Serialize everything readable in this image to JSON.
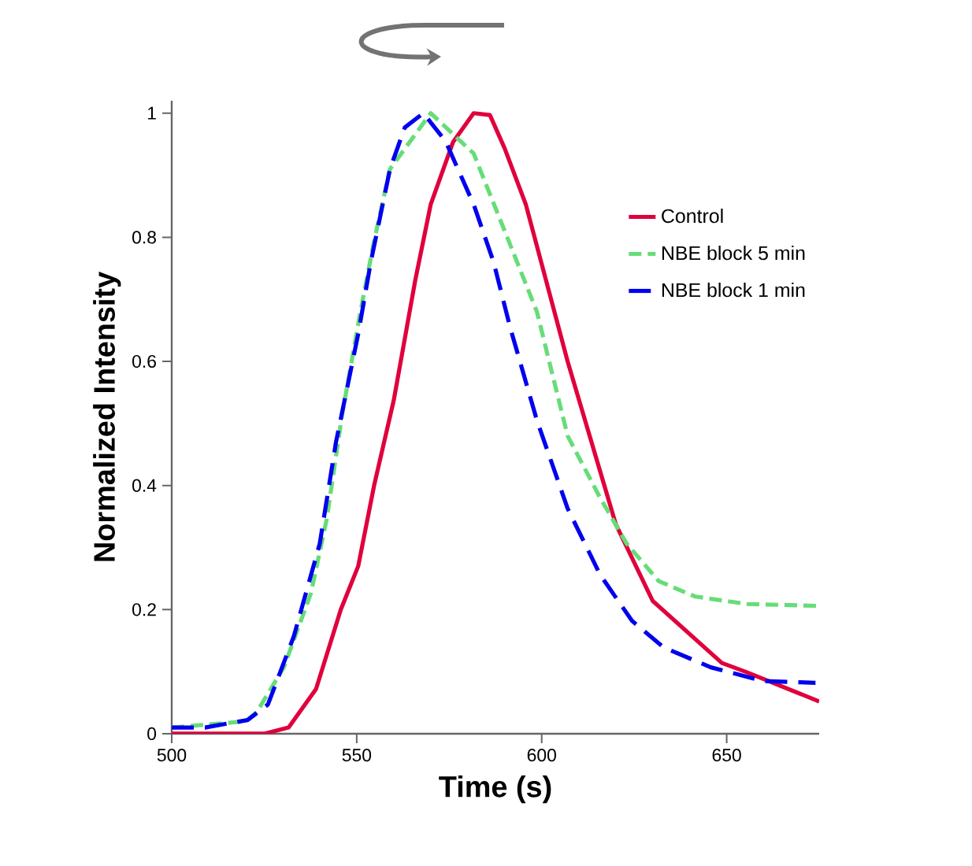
{
  "chart_data": {
    "type": "line",
    "xlabel": "Time (s)",
    "ylabel": "Normalized Intensity",
    "xlim": [
      500,
      675
    ],
    "ylim": [
      0,
      1.02
    ],
    "xticks": [
      500,
      550,
      600,
      650
    ],
    "yticks": [
      0,
      0.2,
      0.4,
      0.6,
      0.8,
      1
    ],
    "legend": "right",
    "grid": false,
    "marker": "none",
    "series": [
      {
        "name": "Control",
        "color": "#e0003c",
        "line_style": "solid",
        "x": [
          500,
          525,
          531.6,
          539,
          545.7,
          550.4,
          554.7,
          560,
          565.8,
          570,
          576,
          581.6,
          586,
          590,
          595.7,
          607,
          620,
          630,
          648.7,
          655,
          675
        ],
        "values": [
          0,
          0,
          0.01,
          0.072,
          0.2,
          0.27,
          0.4,
          0.537,
          0.73,
          0.853,
          0.953,
          1.0,
          0.997,
          0.943,
          0.853,
          0.6,
          0.338,
          0.214,
          0.114,
          0.1,
          0.052
        ]
      },
      {
        "name": "NBE block 5 min",
        "color": "#66dd77",
        "line_style": "dashed",
        "x": [
          500,
          520,
          523,
          530.3,
          537.6,
          541.9,
          546,
          551,
          554.7,
          559,
          570,
          581.6,
          590,
          598.7,
          607,
          615.8,
          623,
          631.6,
          641.5,
          655.6,
          675
        ],
        "values": [
          0.01,
          0.02,
          0.035,
          0.107,
          0.226,
          0.346,
          0.512,
          0.68,
          0.794,
          0.91,
          1.0,
          0.935,
          0.81,
          0.68,
          0.48,
          0.38,
          0.306,
          0.246,
          0.221,
          0.209,
          0.206
        ]
      },
      {
        "name": "NBE block 1 min",
        "color": "#0000ee",
        "line_style": "dashed",
        "x": [
          500,
          509,
          520.5,
          526,
          533,
          540,
          544.4,
          550.4,
          553.8,
          559,
          563,
          568,
          574,
          581.6,
          587,
          591.5,
          598.7,
          607,
          615.8,
          624.4,
          633,
          645.7,
          659.8,
          674
        ],
        "values": [
          0.01,
          0.01,
          0.022,
          0.047,
          0.157,
          0.306,
          0.47,
          0.644,
          0.76,
          0.91,
          0.977,
          1.0,
          0.955,
          0.853,
          0.76,
          0.654,
          0.505,
          0.363,
          0.256,
          0.182,
          0.139,
          0.107,
          0.085,
          0.082
        ]
      }
    ]
  }
}
